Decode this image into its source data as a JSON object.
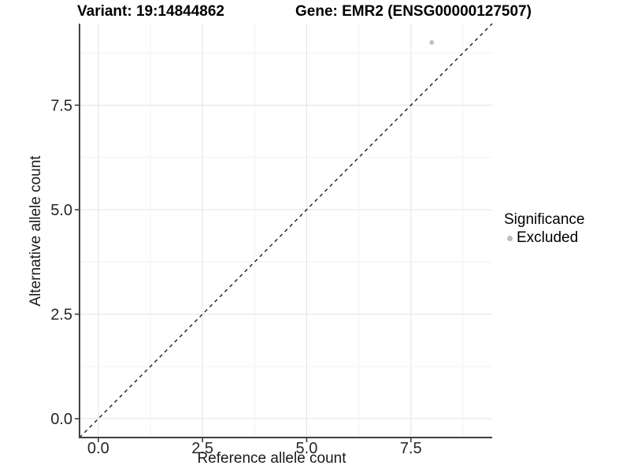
{
  "titles": {
    "variant": "Variant: 19:14844862",
    "gene": "Gene: EMR2 (ENSG00000127507)"
  },
  "chart_data": {
    "type": "scatter",
    "xlabel": "Reference allele count",
    "ylabel": "Alternative allele count",
    "xlim": [
      -0.45,
      9.45
    ],
    "ylim": [
      -0.45,
      9.45
    ],
    "x_ticks": [
      0.0,
      2.5,
      5.0,
      7.5
    ],
    "y_ticks": [
      0.0,
      2.5,
      5.0,
      7.5
    ],
    "x_tick_labels": [
      "0.0",
      "2.5",
      "5.0",
      "7.5"
    ],
    "y_tick_labels": [
      "0.0",
      "2.5",
      "5.0",
      "7.5"
    ],
    "minor_gridlines": [
      1.25,
      3.75,
      6.25,
      8.75
    ],
    "grid": true,
    "legend_position": "right",
    "series": [
      {
        "name": "Excluded",
        "color": "#c1c1c1",
        "points": [
          {
            "x": 8,
            "y": 9
          }
        ]
      }
    ],
    "reference_line": {
      "kind": "identity",
      "style": "dashed",
      "color": "#1a1a1a"
    },
    "legend": {
      "title": "Significance",
      "items": [
        {
          "label": "Excluded",
          "color": "#bcbcbc"
        }
      ]
    }
  },
  "colors": {
    "background": "#ffffff",
    "axis_line": "#404040",
    "tick_mark": "#333333",
    "tick_label": "#262626",
    "grid_major": "#e3e3e3",
    "grid_minor": "#f1f1f1",
    "point": "#c1c1c1"
  }
}
